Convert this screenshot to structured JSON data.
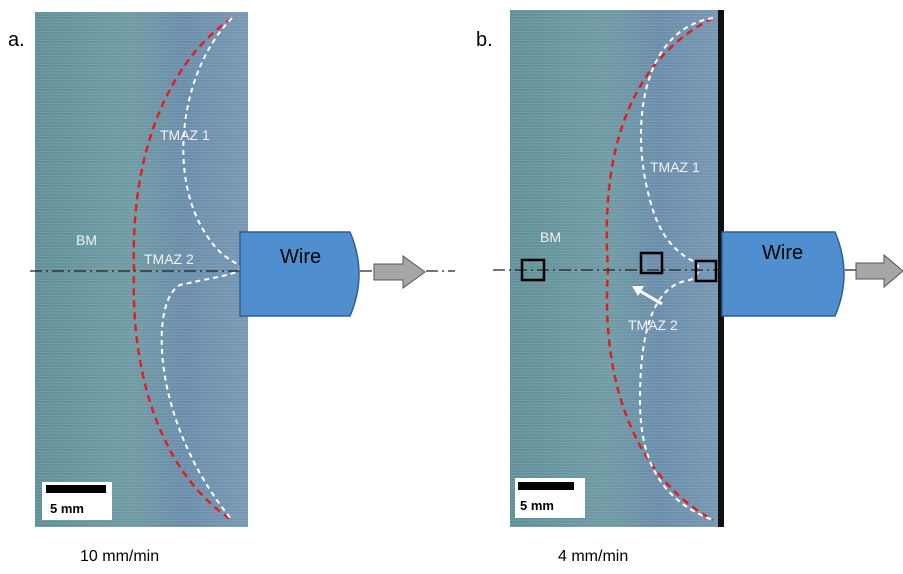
{
  "panels": [
    {
      "label": "a.",
      "regions": {
        "tmaz1": "TMAZ 1",
        "bm": "BM",
        "tmaz2": "TMAZ 2"
      },
      "wire": "Wire",
      "scale_bar": "5 mm",
      "caption": "10 mm/min"
    },
    {
      "label": "b.",
      "regions": {
        "tmaz1": "TMAZ 1",
        "bm": "BM",
        "tmaz2": "TMAZ 2"
      },
      "wire": "Wire",
      "scale_bar": "5 mm",
      "caption": "4 mm/min"
    }
  ]
}
